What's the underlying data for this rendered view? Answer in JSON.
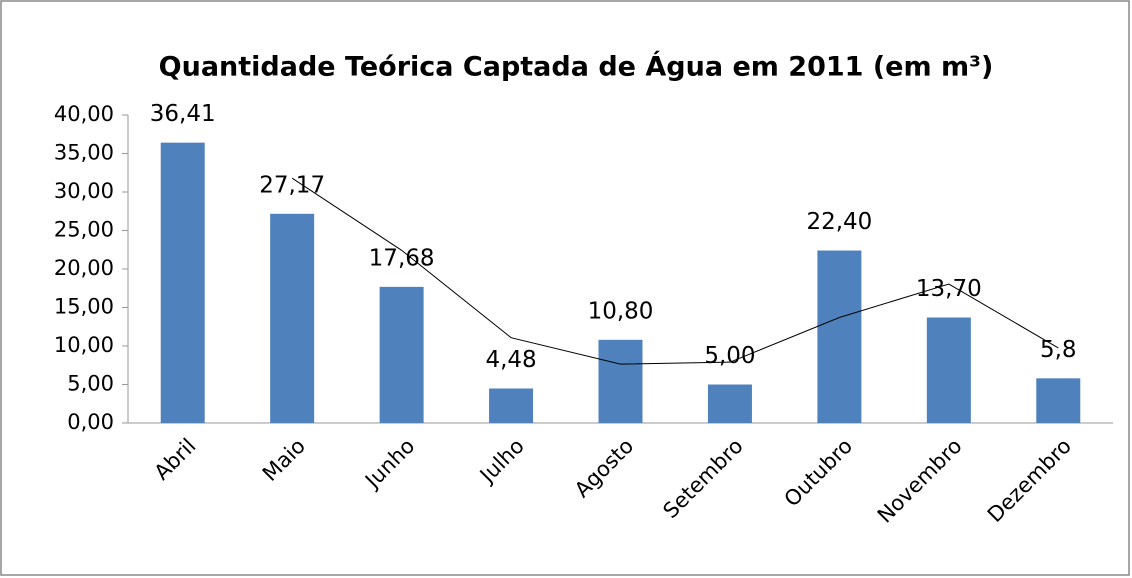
{
  "chart_data": {
    "type": "bar",
    "title": "Quantidade Teórica Captada de Água em 2011 (em m³)",
    "categories": [
      "Abril",
      "Maio",
      "Junho",
      "Julho",
      "Agosto",
      "Setembro",
      "Outubro",
      "Novembro",
      "Dezembro"
    ],
    "values": [
      36.41,
      27.17,
      17.68,
      4.48,
      10.8,
      5.0,
      22.4,
      13.7,
      5.8
    ],
    "value_labels": [
      "36,41",
      "27,17",
      "17,68",
      "4,48",
      "10,80",
      "5,00",
      "22,40",
      "13,70",
      "5,8"
    ],
    "color": "#4f81bd",
    "trend": {
      "color": "#000000",
      "values": [
        null,
        31.79,
        22.43,
        11.08,
        7.64,
        7.9,
        13.7,
        18.05,
        9.75
      ]
    },
    "ylim": [
      0,
      40
    ],
    "yticks": [
      {
        "value": 0,
        "label": "0,00"
      },
      {
        "value": 5,
        "label": "5,00"
      },
      {
        "value": 10,
        "label": "10,00"
      },
      {
        "value": 15,
        "label": "15,00"
      },
      {
        "value": 20,
        "label": "20,00"
      },
      {
        "value": 25,
        "label": "25,00"
      },
      {
        "value": 30,
        "label": "30,00"
      },
      {
        "value": 35,
        "label": "35,00"
      },
      {
        "value": 40,
        "label": "40,00"
      }
    ],
    "grid": false
  }
}
